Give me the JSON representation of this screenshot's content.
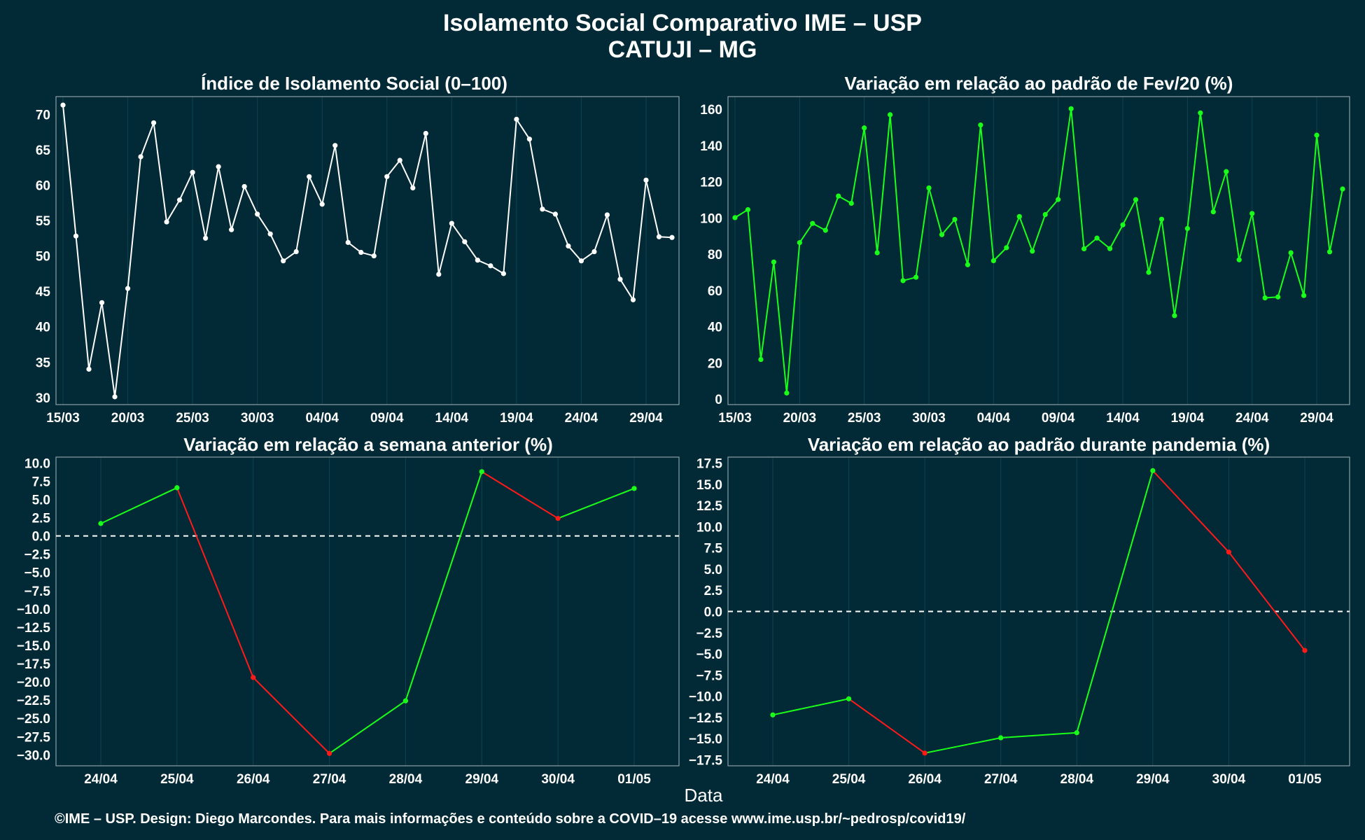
{
  "title": "Isolamento Social Comparativo IME – USP",
  "subtitle": "CATUJI – MG",
  "xlabel": "Data",
  "footer": "©IME – USP. Design: Diego Marcondes. Para mais informações e conteúdo sobre a COVID–19 acesse www.ime.usp.br/~pedrosp/covid19/",
  "colors": {
    "background": "#022a36",
    "index": "#ffffff",
    "increase": "#1aff1a",
    "decrease": "#ff1a1a"
  },
  "chart_data": [
    {
      "type": "line",
      "title": "Índice de Isolamento Social (0–100)",
      "x_start": "2020-03-15",
      "x_tick_labels": [
        "15/03",
        "20/03",
        "25/03",
        "30/03",
        "04/04",
        "09/04",
        "14/04",
        "19/04",
        "24/04",
        "29/04"
      ],
      "ylim": [
        29,
        72.5
      ],
      "y_ticks": [
        30,
        35,
        40,
        45,
        50,
        55,
        60,
        65,
        70
      ],
      "color": "#ffffff",
      "values": [
        71.3,
        52.8,
        34.0,
        43.4,
        30.1,
        45.4,
        64.0,
        68.8,
        54.8,
        57.9,
        61.8,
        52.5,
        62.6,
        53.7,
        59.8,
        55.9,
        53.1,
        49.3,
        50.6,
        61.2,
        57.3,
        65.6,
        51.9,
        50.5,
        50.0,
        61.2,
        63.5,
        59.6,
        67.3,
        47.4,
        54.6,
        52.0,
        49.4,
        48.6,
        47.5,
        69.3,
        66.5,
        56.6,
        55.9,
        51.4,
        49.3,
        50.6,
        55.8,
        46.7,
        43.8,
        60.7,
        52.7,
        52.6
      ]
    },
    {
      "type": "line",
      "title": "Variação em relação ao padrão de Fev/20 (%)",
      "x_start": "2020-03-15",
      "x_tick_labels": [
        "15/03",
        "20/03",
        "25/03",
        "30/03",
        "04/04",
        "09/04",
        "14/04",
        "19/04",
        "24/04",
        "29/04"
      ],
      "ylim": [
        -3,
        167
      ],
      "y_ticks": [
        0,
        20,
        40,
        60,
        80,
        100,
        120,
        140,
        160
      ],
      "color": "#1aff1a",
      "values": [
        100.2,
        104.6,
        21.9,
        75.7,
        3.4,
        86.4,
        97.0,
        93.2,
        112.1,
        108.1,
        149.7,
        80.8,
        157.0,
        65.4,
        67.3,
        116.6,
        90.8,
        99.2,
        74.2,
        151.3,
        76.4,
        83.6,
        100.8,
        81.7,
        101.9,
        110.2,
        160.3,
        83.0,
        88.9,
        83.1,
        96.2,
        110.1,
        70.0,
        99.3,
        46.1,
        94.2,
        158.0,
        103.4,
        125.6,
        76.9,
        102.5,
        55.9,
        56.4,
        80.8,
        57.2,
        145.7,
        81.3,
        116.0
      ]
    },
    {
      "type": "line",
      "title": "Variação em relação a semana anterior (%)",
      "categories": [
        "24/04",
        "25/04",
        "26/04",
        "27/04",
        "28/04",
        "29/04",
        "30/04",
        "01/05"
      ],
      "ylim": [
        -31.5,
        10.8
      ],
      "y_ticks": [
        10,
        7.5,
        5,
        2.5,
        0,
        -2.5,
        -5,
        -7.5,
        -10,
        -12.5,
        -15,
        -17.5,
        -20,
        -22.5,
        -25,
        -27.5,
        -30
      ],
      "y_tick_labels": [
        "10.0",
        "7.5",
        "5.0",
        "2.5",
        "0.0",
        "−2.5",
        "−5.0",
        "−7.5",
        "−10.0",
        "−12.5",
        "−15.0",
        "−17.5",
        "−20.0",
        "−22.5",
        "−25.0",
        "−27.5",
        "−30.0"
      ],
      "reference_line": 0,
      "values": [
        1.7,
        6.6,
        -19.4,
        -29.8,
        -22.6,
        8.8,
        2.4,
        6.5
      ]
    },
    {
      "type": "line",
      "title": "Variação em relação ao padrão durante pandemia (%)",
      "categories": [
        "24/04",
        "25/04",
        "26/04",
        "27/04",
        "28/04",
        "29/04",
        "30/04",
        "01/05"
      ],
      "ylim": [
        -18.2,
        18.2
      ],
      "y_ticks": [
        17.5,
        15,
        12.5,
        10,
        7.5,
        5,
        2.5,
        0,
        -2.5,
        -5,
        -7.5,
        -10,
        -12.5,
        -15,
        -17.5
      ],
      "y_tick_labels": [
        "17.5",
        "15.0",
        "12.5",
        "10.0",
        "7.5",
        "5.0",
        "2.5",
        "0.0",
        "−2.5",
        "−5.0",
        "−7.5",
        "−10.0",
        "−12.5",
        "−15.0",
        "−17.5"
      ],
      "reference_line": 0,
      "values": [
        -12.2,
        -10.3,
        -16.7,
        -14.9,
        -14.3,
        16.6,
        7.0,
        -4.6
      ]
    }
  ]
}
